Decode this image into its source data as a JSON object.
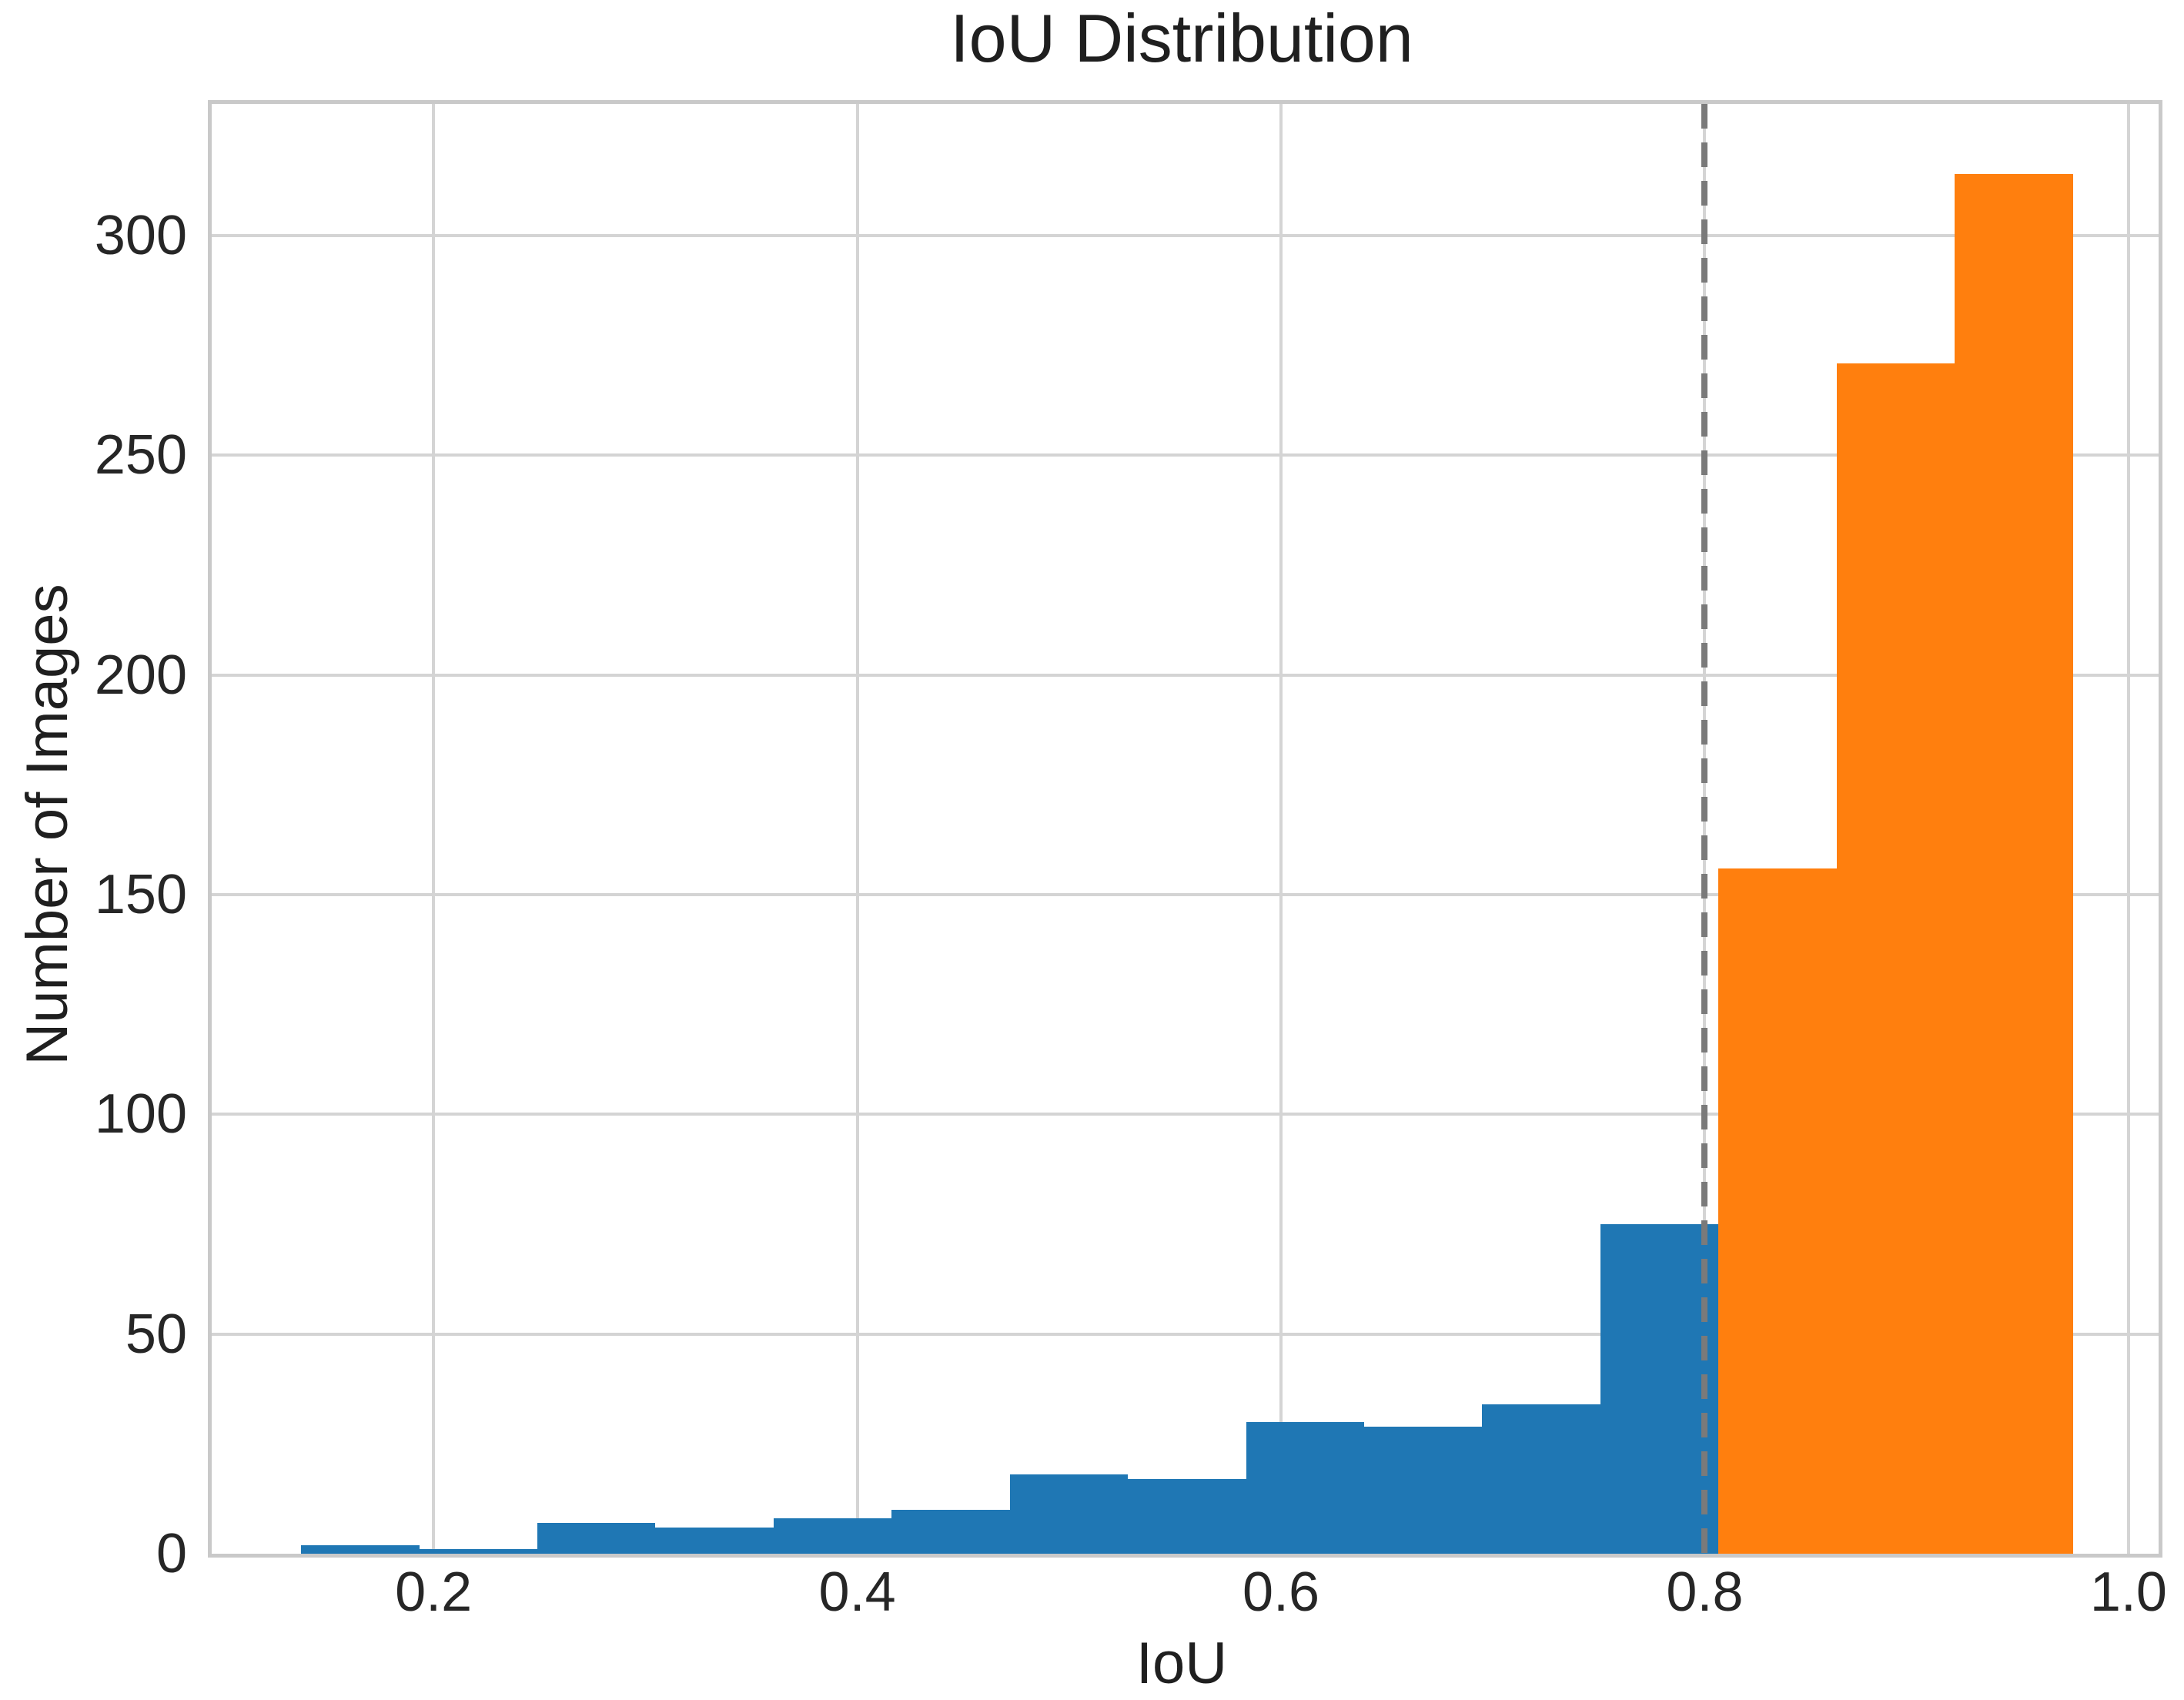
{
  "figure": {
    "title": "IoU Distribution",
    "x_axis_label": "IoU",
    "y_axis_label": "Number of Images"
  },
  "chart_data": {
    "type": "bar",
    "subtype": "histogram",
    "title": "IoU Distribution",
    "xlabel": "IoU",
    "ylabel": "Number of Images",
    "bin_start": 0.1375,
    "bin_width": 0.05575,
    "counts": [
      2,
      1,
      7,
      6,
      8,
      10,
      18,
      17,
      30,
      29,
      34,
      75,
      156,
      271,
      314
    ],
    "threshold_x": 0.8,
    "color_below_threshold": "#1f77b4",
    "color_above_threshold": "#ff7f0e",
    "threshold_line_color": "#7a7a7a",
    "threshold_line_style": "dashed",
    "xticks": [
      0.2,
      0.4,
      0.6,
      0.8,
      1.0
    ],
    "xtick_labels": [
      "0.2",
      "0.4",
      "0.6",
      "0.8",
      "1.0"
    ],
    "yticks": [
      0,
      50,
      100,
      150,
      200,
      250,
      300
    ],
    "ytick_labels": [
      "0",
      "50",
      "100",
      "150",
      "200",
      "250",
      "300"
    ],
    "xlim": [
      0.0953,
      1.0142
    ],
    "ylim": [
      0,
      330
    ],
    "grid": true,
    "legend_position": "none"
  },
  "style": {
    "grid_color": "#d4d4d4",
    "spine_color": "#c9c9c9",
    "text_color": "#1f1f1f",
    "background_color": "#ffffff"
  }
}
